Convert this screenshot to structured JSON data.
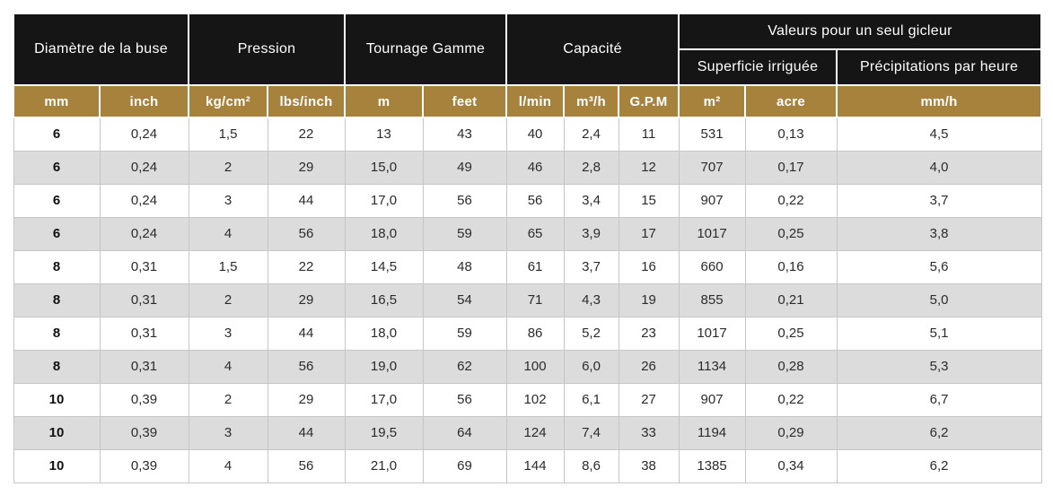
{
  "colors": {
    "header_black": "#151515",
    "accent_gold": "#A6823C",
    "row_alt_gray": "#DCDCDC",
    "cell_border_gray": "#C6C6C6",
    "data_text": "#2B2B2B"
  },
  "table": {
    "header_groups": [
      {
        "label": "Diamètre de la buse"
      },
      {
        "label": "Pression"
      },
      {
        "label": "Tournage Gamme"
      },
      {
        "label": "Capacité"
      },
      {
        "label": "Valeurs pour un seul gicleur"
      }
    ],
    "header_subgroups": [
      {
        "label": "Superficie irriguée"
      },
      {
        "label": "Précipitations par heure"
      }
    ],
    "unit_headers": [
      "mm",
      "inch",
      "kg/cm²",
      "lbs/inch",
      "m",
      "feet",
      "l/min",
      "m³/h",
      "G.P.M",
      "m²",
      "acre",
      "mm/h"
    ],
    "rows": [
      [
        "6",
        "0,24",
        "1,5",
        "22",
        "13",
        "43",
        "40",
        "2,4",
        "11",
        "531",
        "0,13",
        "4,5"
      ],
      [
        "6",
        "0,24",
        "2",
        "29",
        "15,0",
        "49",
        "46",
        "2,8",
        "12",
        "707",
        "0,17",
        "4,0"
      ],
      [
        "6",
        "0,24",
        "3",
        "44",
        "17,0",
        "56",
        "56",
        "3,4",
        "15",
        "907",
        "0,22",
        "3,7"
      ],
      [
        "6",
        "0,24",
        "4",
        "56",
        "18,0",
        "59",
        "65",
        "3,9",
        "17",
        "1017",
        "0,25",
        "3,8"
      ],
      [
        "8",
        "0,31",
        "1,5",
        "22",
        "14,5",
        "48",
        "61",
        "3,7",
        "16",
        "660",
        "0,16",
        "5,6"
      ],
      [
        "8",
        "0,31",
        "2",
        "29",
        "16,5",
        "54",
        "71",
        "4,3",
        "19",
        "855",
        "0,21",
        "5,0"
      ],
      [
        "8",
        "0,31",
        "3",
        "44",
        "18,0",
        "59",
        "86",
        "5,2",
        "23",
        "1017",
        "0,25",
        "5,1"
      ],
      [
        "8",
        "0,31",
        "4",
        "56",
        "19,0",
        "62",
        "100",
        "6,0",
        "26",
        "1134",
        "0,28",
        "5,3"
      ],
      [
        "10",
        "0,39",
        "2",
        "29",
        "17,0",
        "56",
        "102",
        "6,1",
        "27",
        "907",
        "0,22",
        "6,7"
      ],
      [
        "10",
        "0,39",
        "3",
        "44",
        "19,5",
        "64",
        "124",
        "7,4",
        "33",
        "1194",
        "0,29",
        "6,2"
      ],
      [
        "10",
        "0,39",
        "4",
        "56",
        "21,0",
        "69",
        "144",
        "8,6",
        "38",
        "1385",
        "0,34",
        "6,2"
      ]
    ]
  },
  "chart_data": {
    "type": "table",
    "title": "",
    "column_groups": [
      {
        "label": "Diamètre de la buse",
        "columns": [
          "mm",
          "inch"
        ]
      },
      {
        "label": "Pression",
        "columns": [
          "kg/cm²",
          "lbs/inch"
        ]
      },
      {
        "label": "Tournage Gamme",
        "columns": [
          "m",
          "feet"
        ]
      },
      {
        "label": "Capacité",
        "columns": [
          "l/min",
          "m³/h",
          "G.P.M"
        ]
      },
      {
        "label": "Valeurs pour un seul gicleur",
        "subgroups": [
          {
            "label": "Superficie irriguée",
            "columns": [
              "m²",
              "acre"
            ]
          },
          {
            "label": "Précipitations par heure",
            "columns": [
              "mm/h"
            ]
          }
        ]
      }
    ],
    "columns": [
      "mm",
      "inch",
      "kg/cm²",
      "lbs/inch",
      "m",
      "feet",
      "l/min",
      "m³/h",
      "G.P.M",
      "m²",
      "acre",
      "mm/h"
    ],
    "rows": [
      [
        6,
        0.24,
        1.5,
        22,
        13,
        43,
        40,
        2.4,
        11,
        531,
        0.13,
        4.5
      ],
      [
        6,
        0.24,
        2,
        29,
        15.0,
        49,
        46,
        2.8,
        12,
        707,
        0.17,
        4.0
      ],
      [
        6,
        0.24,
        3,
        44,
        17.0,
        56,
        56,
        3.4,
        15,
        907,
        0.22,
        3.7
      ],
      [
        6,
        0.24,
        4,
        56,
        18.0,
        59,
        65,
        3.9,
        17,
        1017,
        0.25,
        3.8
      ],
      [
        8,
        0.31,
        1.5,
        22,
        14.5,
        48,
        61,
        3.7,
        16,
        660,
        0.16,
        5.6
      ],
      [
        8,
        0.31,
        2,
        29,
        16.5,
        54,
        71,
        4.3,
        19,
        855,
        0.21,
        5.0
      ],
      [
        8,
        0.31,
        3,
        44,
        18.0,
        59,
        86,
        5.2,
        23,
        1017,
        0.25,
        5.1
      ],
      [
        8,
        0.31,
        4,
        56,
        19.0,
        62,
        100,
        6.0,
        26,
        1134,
        0.28,
        5.3
      ],
      [
        10,
        0.39,
        2,
        29,
        17.0,
        56,
        102,
        6.1,
        27,
        907,
        0.22,
        6.7
      ],
      [
        10,
        0.39,
        3,
        44,
        19.5,
        64,
        124,
        7.4,
        33,
        1194,
        0.29,
        6.2
      ],
      [
        10,
        0.39,
        4,
        56,
        21.0,
        69,
        144,
        8.6,
        38,
        1385,
        0.34,
        6.2
      ]
    ],
    "notes": "French decimal commas used in displayed values; alternating white/gray data rows; black group headers; gold unit header row"
  }
}
